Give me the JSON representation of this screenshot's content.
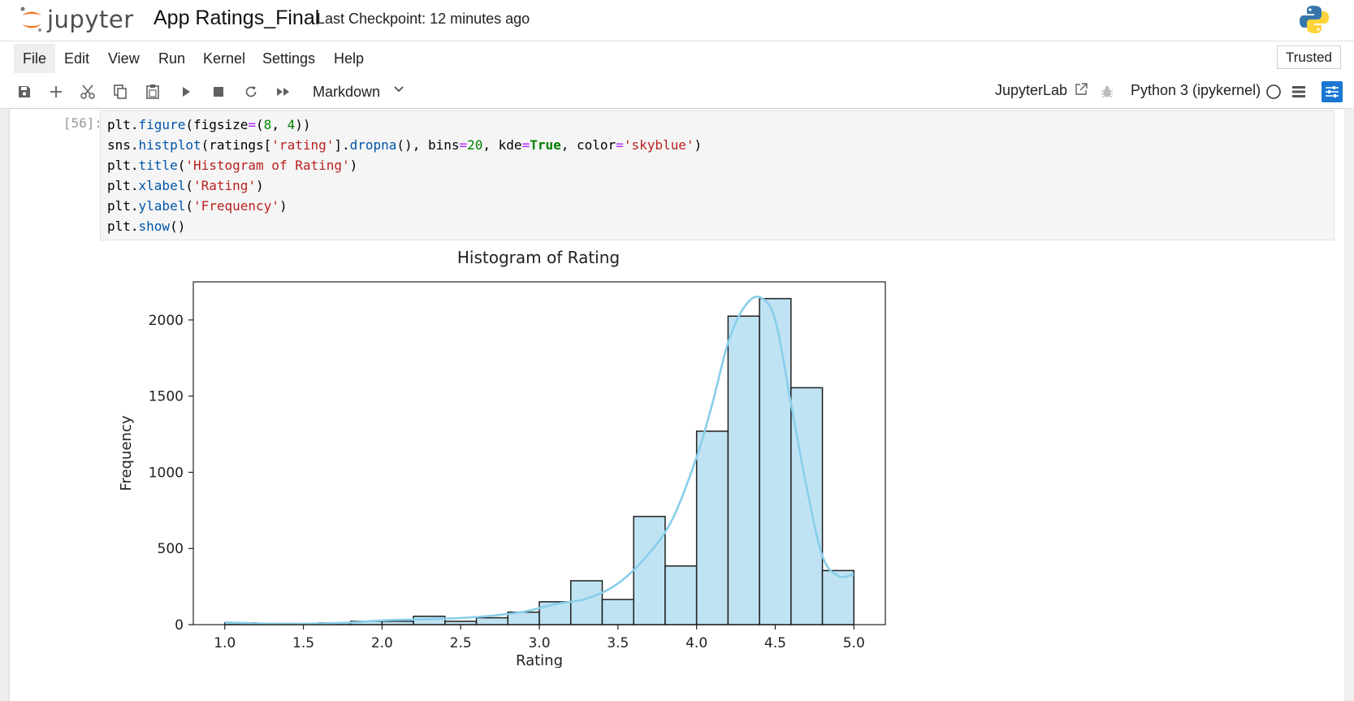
{
  "header": {
    "logo_text": "jupyter",
    "notebook_title": "App Ratings_Final",
    "checkpoint": "Last Checkpoint: 12 minutes ago"
  },
  "menu": {
    "items": [
      "File",
      "Edit",
      "View",
      "Run",
      "Kernel",
      "Settings",
      "Help"
    ],
    "trusted": "Trusted"
  },
  "toolbar": {
    "icons": [
      "save-icon",
      "add-cell-icon",
      "cut-icon",
      "copy-icon",
      "paste-icon",
      "run-icon",
      "stop-icon",
      "restart-icon",
      "fast-forward-icon"
    ],
    "cell_type": "Markdown",
    "jupyterlab_link": "JupyterLab",
    "kernel": "Python 3 (ipykernel)"
  },
  "cell": {
    "prompt": "[56]:",
    "code_lines": [
      [
        {
          "t": "plt."
        },
        {
          "t": "figure",
          "c": "fn"
        },
        {
          "t": "(figsize"
        },
        {
          "t": "=",
          "c": "op"
        },
        {
          "t": "("
        },
        {
          "t": "8",
          "c": "num"
        },
        {
          "t": ", "
        },
        {
          "t": "4",
          "c": "num"
        },
        {
          "t": "))"
        }
      ],
      [
        {
          "t": "sns."
        },
        {
          "t": "histplot",
          "c": "fn"
        },
        {
          "t": "(ratings["
        },
        {
          "t": "'rating'",
          "c": "str"
        },
        {
          "t": "]."
        },
        {
          "t": "dropna",
          "c": "fn"
        },
        {
          "t": "(), bins"
        },
        {
          "t": "=",
          "c": "op"
        },
        {
          "t": "20",
          "c": "num"
        },
        {
          "t": ", kde"
        },
        {
          "t": "=",
          "c": "op"
        },
        {
          "t": "True",
          "c": "kw"
        },
        {
          "t": ", color"
        },
        {
          "t": "=",
          "c": "op"
        },
        {
          "t": "'skyblue'",
          "c": "str"
        },
        {
          "t": ")"
        }
      ],
      [
        {
          "t": "plt."
        },
        {
          "t": "title",
          "c": "fn"
        },
        {
          "t": "("
        },
        {
          "t": "'Histogram of Rating'",
          "c": "str"
        },
        {
          "t": ")"
        }
      ],
      [
        {
          "t": "plt."
        },
        {
          "t": "xlabel",
          "c": "fn"
        },
        {
          "t": "("
        },
        {
          "t": "'Rating'",
          "c": "str"
        },
        {
          "t": ")"
        }
      ],
      [
        {
          "t": "plt."
        },
        {
          "t": "ylabel",
          "c": "fn"
        },
        {
          "t": "("
        },
        {
          "t": "'Frequency'",
          "c": "str"
        },
        {
          "t": ")"
        }
      ],
      [
        {
          "t": "plt."
        },
        {
          "t": "show",
          "c": "fn"
        },
        {
          "t": "()"
        }
      ]
    ]
  },
  "colors": {
    "bar_fill": "#c0e3f3",
    "bar_edge": "#1f1f1f",
    "kde_line": "#87ceeb",
    "accent": "#1976d2"
  },
  "chart_data": {
    "type": "bar",
    "title": "Histogram of Rating",
    "xlabel": "Rating",
    "ylabel": "Frequency",
    "xlim": [
      0.8,
      5.2
    ],
    "ylim": [
      0,
      2250
    ],
    "xticks": [
      1.0,
      1.5,
      2.0,
      2.5,
      3.0,
      3.5,
      4.0,
      4.5,
      5.0
    ],
    "xtick_labels": [
      "1.0",
      "1.5",
      "2.0",
      "2.5",
      "3.0",
      "3.5",
      "4.0",
      "4.5",
      "5.0"
    ],
    "yticks": [
      0,
      500,
      1000,
      1500,
      2000
    ],
    "ytick_labels": [
      "0",
      "500",
      "1000",
      "1500",
      "2000"
    ],
    "bin_edges": [
      1.0,
      1.2,
      1.4,
      1.6,
      1.8,
      2.0,
      2.2,
      2.4,
      2.6,
      2.8,
      3.0,
      3.2,
      3.4,
      3.6,
      3.8,
      4.0,
      4.2,
      4.4,
      4.6,
      4.8,
      5.0
    ],
    "values": [
      12,
      4,
      6,
      12,
      22,
      22,
      55,
      22,
      45,
      82,
      150,
      288,
      165,
      710,
      385,
      1270,
      2025,
      2140,
      1555,
      355
    ],
    "kde": {
      "x": [
        1.0,
        1.2,
        1.5,
        1.8,
        2.0,
        2.3,
        2.6,
        2.9,
        3.1,
        3.3,
        3.5,
        3.7,
        3.85,
        4.0,
        4.1,
        4.2,
        4.3,
        4.4,
        4.5,
        4.6,
        4.7,
        4.8,
        4.9,
        5.0
      ],
      "y": [
        15,
        8,
        6,
        14,
        28,
        36,
        50,
        85,
        135,
        170,
        270,
        470,
        700,
        1100,
        1450,
        1850,
        2080,
        2150,
        2000,
        1450,
        900,
        450,
        320,
        330
      ]
    },
    "grid": false
  }
}
